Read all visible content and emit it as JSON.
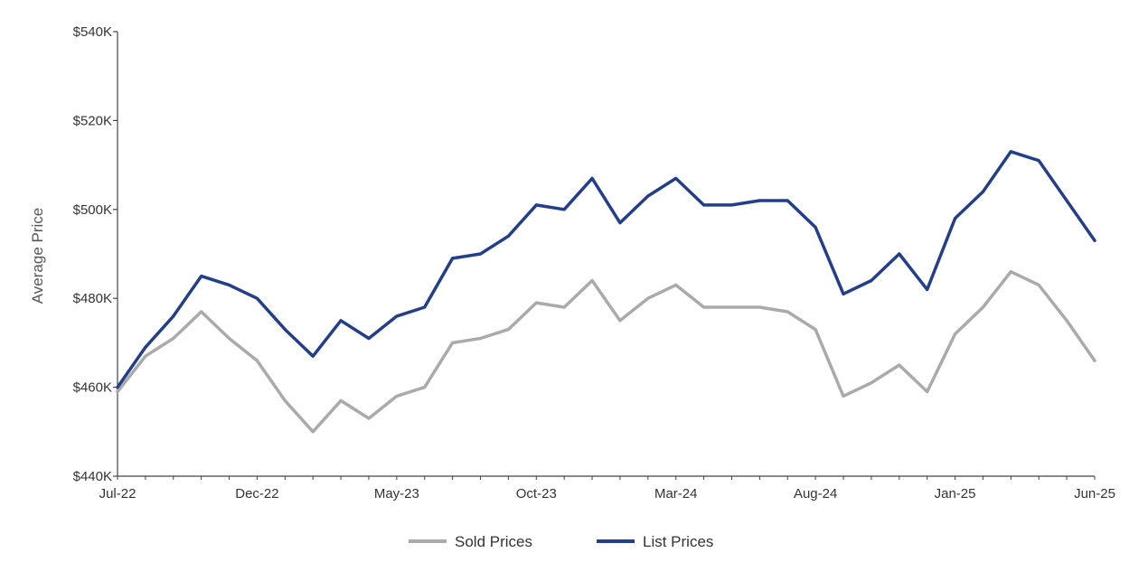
{
  "chart_data": {
    "type": "line",
    "title": "",
    "xlabel": "",
    "ylabel": "Average Price",
    "ylim": [
      440000,
      540000
    ],
    "y_ticks": [
      440000,
      460000,
      480000,
      500000,
      520000,
      540000
    ],
    "y_tick_labels": [
      "$440K",
      "$460K",
      "$480K",
      "$500K",
      "$520K",
      "$540K"
    ],
    "x": [
      "Jul-22",
      "Aug-22",
      "Sep-22",
      "Oct-22",
      "Nov-22",
      "Dec-22",
      "Jan-23",
      "Feb-23",
      "Mar-23",
      "Apr-23",
      "May-23",
      "Jun-23",
      "Jul-23",
      "Aug-23",
      "Sep-23",
      "Oct-23",
      "Nov-23",
      "Dec-23",
      "Jan-24",
      "Feb-24",
      "Mar-24",
      "Apr-24",
      "May-24",
      "Jun-24",
      "Jul-24",
      "Aug-24",
      "Sep-24",
      "Oct-24",
      "Nov-24",
      "Dec-24",
      "Jan-25",
      "Feb-25",
      "Mar-25",
      "Apr-25",
      "May-25",
      "Jun-25"
    ],
    "x_tick_labels": [
      "Jul-22",
      "Dec-22",
      "May-23",
      "Oct-23",
      "Mar-24",
      "Aug-24",
      "Jan-25",
      "Jun-25"
    ],
    "grid": false,
    "legend_position": "bottom",
    "series": [
      {
        "name": "Sold Prices",
        "color": "#aaaaaa",
        "values": [
          459000,
          467000,
          471000,
          477000,
          471000,
          466000,
          457000,
          450000,
          457000,
          453000,
          458000,
          460000,
          470000,
          471000,
          473000,
          479000,
          478000,
          484000,
          475000,
          480000,
          483000,
          478000,
          478000,
          478000,
          477000,
          473000,
          458000,
          461000,
          465000,
          459000,
          472000,
          478000,
          486000,
          483000,
          475000,
          466000
        ]
      },
      {
        "name": "List Prices",
        "color": "#233e8b",
        "values": [
          460000,
          469000,
          476000,
          485000,
          483000,
          480000,
          473000,
          467000,
          475000,
          471000,
          476000,
          478000,
          489000,
          490000,
          494000,
          501000,
          500000,
          507000,
          497000,
          503000,
          507000,
          501000,
          501000,
          502000,
          502000,
          496000,
          481000,
          484000,
          490000,
          482000,
          498000,
          504000,
          513000,
          511000,
          502000,
          493000
        ]
      }
    ]
  }
}
